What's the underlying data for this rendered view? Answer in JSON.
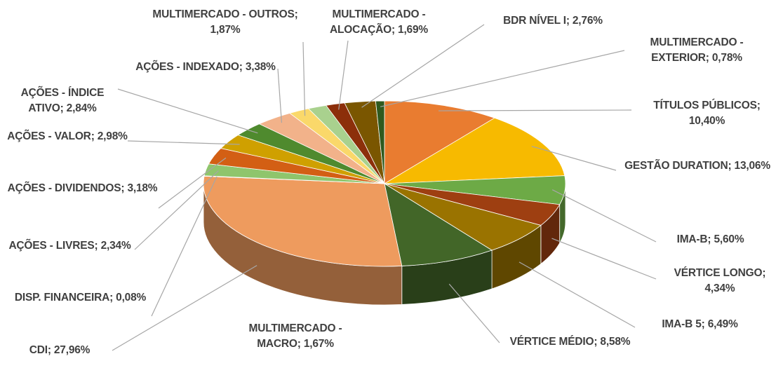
{
  "chart_data": {
    "type": "pie3d",
    "categories": [
      "TÍTULOS PÚBLICOS",
      "GESTÃO DURATION",
      "IMA-B",
      "VÉRTICE LONGO",
      "IMA-B 5",
      "VÉRTICE MÉDIO",
      "CDI",
      "DISP. FINANCEIRA",
      "AÇÕES - LIVRES",
      "AÇÕES - DIVIDENDOS",
      "AÇÕES - VALOR",
      "AÇÕES - ÍNDICE ATIVO",
      "AÇÕES - INDEXADO",
      "MULTIMERCADO - OUTROS",
      "MULTIMERCADO - MACRO",
      "MULTIMERCADO - ALOCAÇÃO",
      "BDR NÍVEL I",
      "MULTIMERCADO - EXTERIOR"
    ],
    "values": [
      10.4,
      13.06,
      5.6,
      4.34,
      6.49,
      8.58,
      27.96,
      0.08,
      2.34,
      3.18,
      2.98,
      2.84,
      3.38,
      1.87,
      1.67,
      1.69,
      2.76,
      0.78
    ],
    "value_labels": [
      "10,40%",
      "13,06%",
      "5,60%",
      "4,34%",
      "6,49%",
      "8,58%",
      "27,96%",
      "0,08%",
      "2,34%",
      "3,18%",
      "2,98%",
      "2,84%",
      "3,38%",
      "1,87%",
      "1,67%",
      "1,69%",
      "2,76%",
      "0,78%"
    ],
    "label_separator": "; ",
    "colors": [
      "#E97C30",
      "#F7BA00",
      "#6DAA46",
      "#9E3F11",
      "#9A7300",
      "#426628",
      "#EE9B5E",
      "#F2C55E",
      "#8FC56C",
      "#D35F14",
      "#CFA000",
      "#4F8A2E",
      "#F2B28A",
      "#FAD86A",
      "#A9D18E",
      "#8C2F0A",
      "#7A5600",
      "#2F5A1E"
    ]
  }
}
